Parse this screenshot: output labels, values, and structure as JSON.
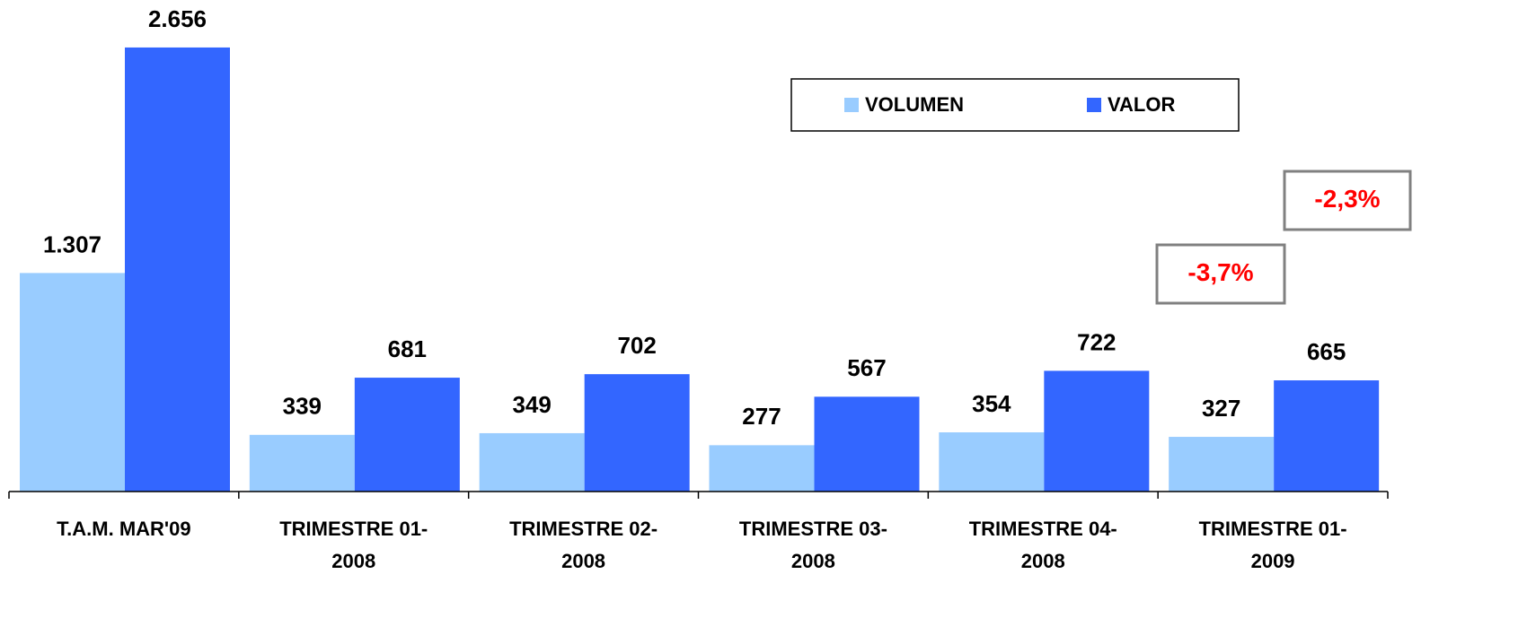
{
  "chart_data": {
    "type": "bar",
    "categories": [
      "T.A.M. MAR'09",
      "TRIMESTRE 01-2008",
      "TRIMESTRE 02-2008",
      "TRIMESTRE 03-2008",
      "TRIMESTRE 04-2008",
      "TRIMESTRE 01-2009"
    ],
    "series": [
      {
        "name": "VOLUMEN",
        "color": "#99ccff",
        "values": [
          1307,
          339,
          349,
          277,
          354,
          327
        ],
        "value_labels": [
          "1.307",
          "339",
          "349",
          "277",
          "354",
          "327"
        ]
      },
      {
        "name": "VALOR",
        "color": "#3366ff",
        "values": [
          2656,
          681,
          702,
          567,
          722,
          665
        ],
        "value_labels": [
          "2.656",
          "681",
          "702",
          "567",
          "722",
          "665"
        ]
      }
    ],
    "ylim": [
      0,
      2940
    ],
    "legend": "top-right",
    "annotations": [
      "-3,7%",
      "-2,3%"
    ],
    "annotation_color": "#ff0000"
  }
}
